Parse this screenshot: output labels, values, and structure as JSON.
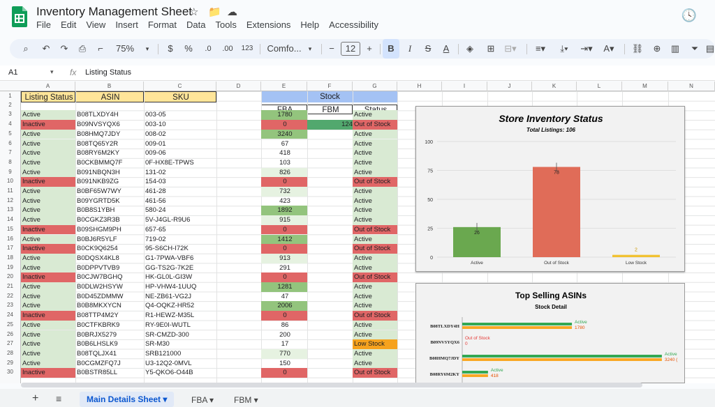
{
  "app": {
    "title": "Inventory Management Sheet",
    "menu": [
      "File",
      "Edit",
      "View",
      "Insert",
      "Format",
      "Data",
      "Tools",
      "Extensions",
      "Help",
      "Accessibility"
    ]
  },
  "toolbar": {
    "zoom": "75%",
    "currency": "$",
    "percent": "%",
    "dec_dec": ".0",
    "dec_inc": ".00",
    "numfmt": "123",
    "font": "Comfo...",
    "font_size": "12",
    "bold": "B",
    "italic": "I"
  },
  "formula": {
    "cell": "A1",
    "fx": "fx",
    "value": "Listing Status"
  },
  "columns": [
    "A",
    "B",
    "C",
    "D",
    "E",
    "F",
    "G",
    "H",
    "I",
    "J",
    "K",
    "L",
    "M",
    "N"
  ],
  "headers": {
    "status": "Listing Status",
    "asin": "ASIN",
    "sku": "SKU",
    "stock": "Stock",
    "fba": "FBA",
    "fbm": "FBM",
    "status2": "Status"
  },
  "rows": [
    [
      "Active",
      "B08TLXDY4H",
      "003-05",
      "1780",
      "",
      "Active"
    ],
    [
      "Inactive",
      "B09NVSYQX6",
      "003-10",
      "0",
      "124",
      "Out of Stock"
    ],
    [
      "Active",
      "B08HMQ7JDY",
      "008-02",
      "3240",
      "",
      "Active"
    ],
    [
      "Active",
      "B08TQ65Y2R",
      "009-01",
      "67",
      "",
      "Active"
    ],
    [
      "Active",
      "B08RY6M2KY",
      "009-06",
      "418",
      "",
      "Active"
    ],
    [
      "Active",
      "B0CKBMMQ7F",
      "0F-HX8E-TPWS",
      "103",
      "",
      "Active"
    ],
    [
      "Active",
      "B091NBQN3H",
      "131-02",
      "826",
      "",
      "Active"
    ],
    [
      "Inactive",
      "B091NKB9ZG",
      "154-03",
      "0",
      "",
      "Out of Stock"
    ],
    [
      "Active",
      "B0BF65W7WY",
      "461-28",
      "732",
      "",
      "Active"
    ],
    [
      "Active",
      "B09YGRTD5K",
      "461-56",
      "423",
      "",
      "Active"
    ],
    [
      "Active",
      "B0B8S1YBH",
      "580-24",
      "1892",
      "",
      "Active"
    ],
    [
      "Active",
      "B0CGKZ3R3B",
      "5V-J4GL-R9U6",
      "915",
      "",
      "Active"
    ],
    [
      "Inactive",
      "B09SHGM9PH",
      "657-65",
      "0",
      "",
      "Out of Stock"
    ],
    [
      "Active",
      "B0BJ6R5YLF",
      "719-02",
      "1412",
      "",
      "Active"
    ],
    [
      "Inactive",
      "B0CK9Q6254",
      "95-S6CH-I72K",
      "0",
      "",
      "Out of Stock"
    ],
    [
      "Active",
      "B0DQSX4KL8",
      "G1-7PWA-VBF6",
      "913",
      "",
      "Active"
    ],
    [
      "Active",
      "B0DPPVTVB9",
      "GG-TS2G-7K2E",
      "291",
      "",
      "Active"
    ],
    [
      "Inactive",
      "B0CJW7BGHQ",
      "HK-GL0L-GI3W",
      "0",
      "",
      "Out of Stock"
    ],
    [
      "Active",
      "B0DLW2HSYW",
      "HP-VHW4-1UUQ",
      "1281",
      "",
      "Active"
    ],
    [
      "Active",
      "B0D45ZDMMW",
      "NE-ZB61-VG2J",
      "47",
      "",
      "Active"
    ],
    [
      "Active",
      "B0B8MKXYCN",
      "Q4-OQKZ-HR52",
      "2006",
      "",
      "Active"
    ],
    [
      "Inactive",
      "B08TTP4M2Y",
      "R1-HEWZ-M35L",
      "0",
      "",
      "Out of Stock"
    ],
    [
      "Active",
      "B0CTFKBRK9",
      "RY-9E0I-WUTL",
      "86",
      "",
      "Active"
    ],
    [
      "Active",
      "B0BRJX5279",
      "SR-CMZD-300",
      "200",
      "",
      "Active"
    ],
    [
      "Active",
      "B0B6LHSLK9",
      "SR-M30",
      "17",
      "",
      "Low Stock"
    ],
    [
      "Active",
      "B08TQLJX41",
      "SRB121000",
      "770",
      "",
      "Active"
    ],
    [
      "Active",
      "B0CGMZFQ7J",
      "U3-12Q2-0MVL",
      "150",
      "",
      "Active"
    ],
    [
      "Inactive",
      "B0BSTR85LL",
      "Y5-QKO6-O44B",
      "0",
      "",
      "Out of Stock"
    ]
  ],
  "chart_data": [
    {
      "type": "bar",
      "title": "Store Inventory Status",
      "subtitle": "Total Listings: 106",
      "categories": [
        "Active",
        "Out of Stock",
        "Low Stock"
      ],
      "values": [
        26,
        78,
        2
      ],
      "ylim": [
        0,
        100
      ],
      "yticks": [
        0,
        25,
        50,
        75,
        100
      ],
      "colors": [
        "#6aa84f",
        "#e06c58",
        "#f1c232"
      ]
    },
    {
      "type": "bar",
      "title": "Top Selling ASINs",
      "subtitle": "Stock Detail",
      "categories": [
        "B08TLXDY4H",
        "B09NVSYQX6",
        "B08HMQ7JDY",
        "B08RY6M2KY"
      ],
      "series": [
        {
          "values": [
            1780,
            0,
            3240,
            418
          ],
          "labels": [
            "1780",
            "0",
            "3240 (",
            "418"
          ]
        },
        {
          "values": [
            1780,
            0,
            3240,
            418
          ],
          "labels": [
            "Active",
            "Out of Stock",
            "Active",
            "Active"
          ]
        }
      ]
    }
  ],
  "sheets": {
    "add": "+",
    "list": "≡",
    "tabs": [
      "Main Details Sheet",
      "FBA",
      "FBM"
    ]
  }
}
